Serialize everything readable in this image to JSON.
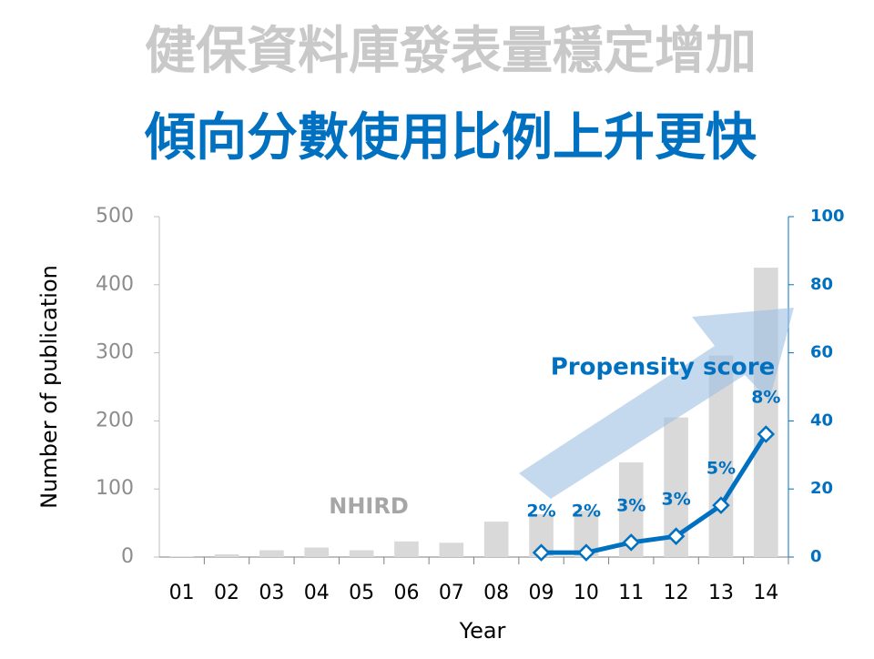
{
  "chart_data": {
    "type": "combo",
    "title": "健保資料庫發表量穩定增加",
    "subtitle": "傾向分數使用比例上升更快",
    "x_label": "Year",
    "y_label": "Number of publication",
    "categories": [
      "01",
      "02",
      "03",
      "04",
      "05",
      "06",
      "07",
      "08",
      "09",
      "10",
      "11",
      "12",
      "13",
      "14"
    ],
    "series": [
      {
        "name": "NHIRD",
        "type": "bar",
        "color": "#d9d9d9",
        "axis": "y",
        "values": [
          1,
          4,
          10,
          14,
          10,
          23,
          21,
          52,
          63,
          68,
          139,
          205,
          296,
          425
        ]
      },
      {
        "name": "Propensity score",
        "type": "line",
        "color": "#0070c0",
        "axis": "y2",
        "values": [
          null,
          null,
          null,
          null,
          null,
          null,
          null,
          null,
          1.3,
          1.3,
          4.3,
          6.1,
          15.2,
          36.1
        ],
        "data_labels": [
          null,
          null,
          null,
          null,
          null,
          null,
          null,
          null,
          "2%",
          "2%",
          "3%",
          "3%",
          "5%",
          "8%"
        ]
      }
    ],
    "ylim": [
      0,
      500
    ],
    "yticks": [
      0,
      100,
      200,
      300,
      400,
      500
    ],
    "y2lim": [
      0,
      100
    ],
    "y2ticks": [
      0,
      20,
      40,
      60,
      80,
      100
    ],
    "grid": false
  }
}
